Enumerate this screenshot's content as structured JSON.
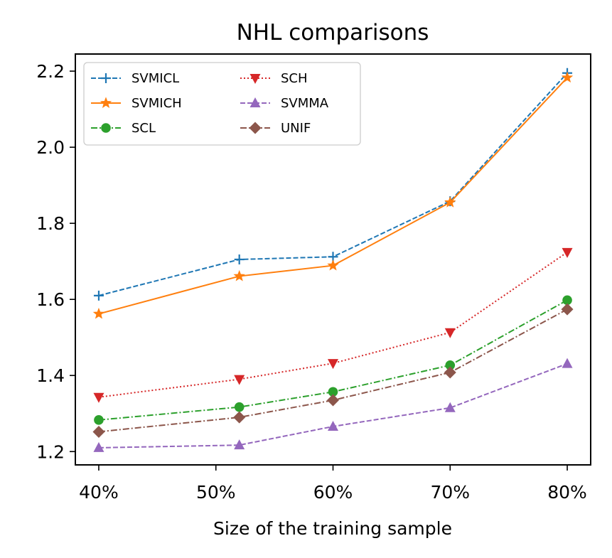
{
  "chart_data": {
    "type": "line",
    "title": "NHL comparisons",
    "xlabel": "Size of the training sample",
    "ylabel": "",
    "x": [
      40,
      52,
      60,
      70,
      80
    ],
    "xticks": [
      40,
      50,
      60,
      70,
      80
    ],
    "xtick_labels": [
      "40%",
      "50%",
      "60%",
      "70%",
      "80%"
    ],
    "xlim": [
      38,
      82
    ],
    "yticks": [
      1.2,
      1.4,
      1.6,
      1.8,
      2.0,
      2.2
    ],
    "ytick_labels": [
      "1.2",
      "1.4",
      "1.6",
      "1.8",
      "2.0",
      "2.2"
    ],
    "ylim": [
      1.165,
      2.245
    ],
    "grid": false,
    "legend_position": "top-left",
    "series": [
      {
        "name": "SVMICL",
        "values": [
          1.61,
          1.705,
          1.712,
          1.858,
          2.195
        ],
        "color": "#1f77b4",
        "linestyle": "dashed",
        "marker": "plus"
      },
      {
        "name": "SVMICH",
        "values": [
          1.562,
          1.661,
          1.689,
          1.855,
          2.183
        ],
        "color": "#ff7f0e",
        "linestyle": "solid",
        "marker": "star"
      },
      {
        "name": "SCL",
        "values": [
          1.283,
          1.317,
          1.357,
          1.427,
          1.598
        ],
        "color": "#2ca02c",
        "linestyle": "dashdot",
        "marker": "circle"
      },
      {
        "name": "SCH",
        "values": [
          1.343,
          1.39,
          1.432,
          1.513,
          1.724
        ],
        "color": "#d62728",
        "linestyle": "dotted",
        "marker": "triangle-down"
      },
      {
        "name": "SVMMA",
        "values": [
          1.21,
          1.217,
          1.266,
          1.315,
          1.431
        ],
        "color": "#9467bd",
        "linestyle": "dashed",
        "marker": "triangle-up"
      },
      {
        "name": "UNIF",
        "values": [
          1.252,
          1.29,
          1.335,
          1.408,
          1.574
        ],
        "color": "#8c564b",
        "linestyle": "dashdot",
        "marker": "diamond"
      }
    ]
  }
}
